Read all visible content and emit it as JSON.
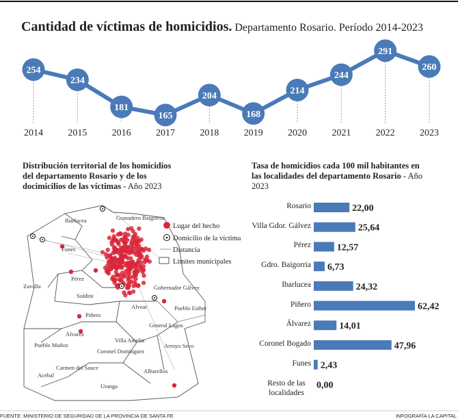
{
  "title": "Cantidad de víctimas de homicidios.",
  "subtitle": "Departamento Rosario. Período 2014-2023",
  "chart_data": [
    {
      "type": "line",
      "categories": [
        "2014",
        "2015",
        "2016",
        "2017",
        "2018",
        "2019",
        "2020",
        "2021",
        "2022",
        "2023"
      ],
      "values": [
        254,
        234,
        181,
        165,
        204,
        168,
        214,
        244,
        291,
        260
      ],
      "color": "#4a7ab8"
    },
    {
      "type": "bar",
      "title": "Tasa de homicidios cada 100 mil habitantes en las localidades del departamento Rosario",
      "subtitle": "- Año 2023",
      "categories": [
        "Rosario",
        "Villa Gdor. Gálvez",
        "Pérez",
        "Gdro. Baigorria",
        "Ibarlucea",
        "Piñero",
        "Álvarez",
        "Coronel Bogado",
        "Funes",
        "Resto de las localidades"
      ],
      "values": [
        22.0,
        25.64,
        12.57,
        6.73,
        24.32,
        62.42,
        14.01,
        47.96,
        2.43,
        0.0
      ],
      "value_labels": [
        "22,00",
        "25,64",
        "12,57",
        "6,73",
        "24,32",
        "62,42",
        "14,01",
        "47,96",
        "2,43",
        "0,00"
      ],
      "color": "#4a7ab8"
    }
  ],
  "map": {
    "title": "Distribución territorial de los homicidios del departamento Rosario y de los docimicilios de las víctimas",
    "subtitle": "- Año 2023",
    "legend": [
      "Lugar del hecho",
      "Domicilio de la víctima",
      "Distancia",
      "Límites municipales"
    ],
    "places": [
      "Ibarlucea",
      "Granadero Baigorria",
      "Funes",
      "Pérez",
      "Zavalla",
      "Soldini",
      "Gobernador Gálvez",
      "Pueblo Esther",
      "Alvear",
      "General Lagos",
      "Piñero",
      "Álvarez",
      "Villa Amelia",
      "Arroyo Seco",
      "Pueblo Muñoz",
      "Coronel Domínguez",
      "Carmen del Sauce",
      "Acebal",
      "Albarellos",
      "Uranga"
    ]
  },
  "footer": {
    "source": "FUENTE: MINISTERIO DE SEGURIDAD DE LA PROVINCIA DE SANTA FE",
    "credit": "INFOGRAFÍA LA CAPITAL"
  }
}
